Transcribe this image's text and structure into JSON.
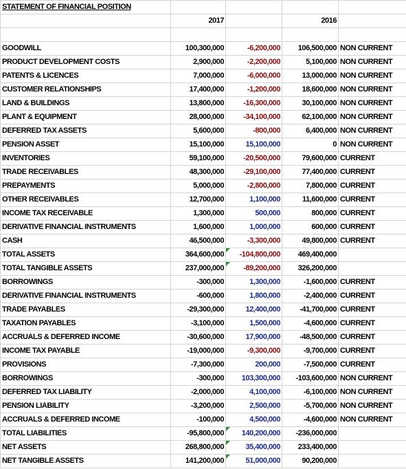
{
  "header": {
    "title": "STATEMENT OF FINANCIAL POSITION",
    "columns": [
      "2017",
      "2016"
    ]
  },
  "table": {
    "rows": [
      [
        "GOODWILL",
        "100,300,000",
        "-6,200,000",
        "106,500,000",
        "NON CURRENT"
      ],
      [
        "PRODUCT DEVELOPMENT COSTS",
        "2,900,000",
        "-2,200,000",
        "5,100,000",
        "NON CURRENT"
      ],
      [
        "PATENTS & LICENCES",
        "7,000,000",
        "-6,000,000",
        "13,000,000",
        "NON CURRENT"
      ],
      [
        "CUSTOMER RELATIONSHIPS",
        "17,400,000",
        "-1,200,000",
        "18,600,000",
        "NON CURRENT"
      ],
      [
        "LAND & BUILDINGS",
        "13,800,000",
        "-16,300,000",
        "30,100,000",
        "NON CURRENT"
      ],
      [
        "PLANT & EQUIPMENT",
        "28,000,000",
        "-34,100,000",
        "62,100,000",
        "NON CURRENT"
      ],
      [
        "DEFERRED TAX ASSETS",
        "5,600,000",
        "-800,000",
        "6,400,000",
        "NON CURRENT"
      ],
      [
        "PENSION ASSET",
        "15,100,000",
        "15,100,000",
        "0",
        "NON CURRENT"
      ],
      [
        "INVENTORIES",
        "59,100,000",
        "-20,500,000",
        "79,600,000",
        "CURRENT"
      ],
      [
        "TRADE RECEIVABLES",
        "48,300,000",
        "-29,100,000",
        "77,400,000",
        "CURRENT"
      ],
      [
        "PREPAYMENTS",
        "5,000,000",
        "-2,800,000",
        "7,800,000",
        "CURRENT"
      ],
      [
        "OTHER RECEIVABLES",
        "12,700,000",
        "1,100,000",
        "11,600,000",
        "CURRENT"
      ],
      [
        "INCOME TAX RECEIVABLE",
        "1,300,000",
        "500,000",
        "800,000",
        "CURRENT"
      ],
      [
        "DERIVATIVE FINANCIAL INSTRUMENTS",
        "1,600,000",
        "1,000,000",
        "600,000",
        "CURRENT"
      ],
      [
        "CASH",
        "46,500,000",
        "-3,300,000",
        "49,800,000",
        "CURRENT"
      ],
      [
        "TOTAL ASSETS",
        "364,600,000",
        "-104,800,000",
        "469,400,000",
        null
      ],
      [
        "TOTAL TANGIBLE ASSETS",
        "237,000,000",
        "-89,200,000",
        "326,200,000",
        null
      ],
      [
        "BORROWINGS",
        "-300,000",
        "1,300,000",
        "-1,600,000",
        "CURRENT"
      ],
      [
        "DERIVATIVE FINANCIAL INSTRUMENTS",
        "-600,000",
        "1,800,000",
        "-2,400,000",
        "CURRENT"
      ],
      [
        "TRADE PAYABLES",
        "-29,300,000",
        "12,400,000",
        "-41,700,000",
        "CURRENT"
      ],
      [
        "TAXATION PAYABLES",
        "-3,100,000",
        "1,500,000",
        "-4,600,000",
        "CURRENT"
      ],
      [
        "ACCRUALS & DEFERRED INCOME",
        "-30,600,000",
        "17,900,000",
        "-48,500,000",
        "CURRENT"
      ],
      [
        "INCOME TAX PAYABLE",
        "-19,000,000",
        "-9,300,000",
        "-9,700,000",
        "CURRENT"
      ],
      [
        "PROVISIONS",
        "-7,300,000",
        "200,000",
        "-7,500,000",
        "CURRENT"
      ],
      [
        "BORROWINGS",
        "-300,000",
        "103,300,000",
        "-103,600,000",
        "NON CURRENT"
      ],
      [
        "DEFERRED TAX LIABILITY",
        "-2,000,000",
        "4,100,000",
        "-6,100,000",
        "NON CURRENT"
      ],
      [
        "PENSION LIABILITY",
        "-3,200,000",
        "2,500,000",
        "-5,700,000",
        "NON CURRENT"
      ],
      [
        "ACCRUALS & DEFERRED INCOME",
        "-100,000",
        "4,500,000",
        "-4,600,000",
        "NON CURRENT"
      ],
      [
        "TOTAL LIABILITIES",
        "-95,800,000",
        "140,200,000",
        "-236,000,000",
        null
      ],
      [
        "NET ASSETS",
        "268,800,000",
        "35,400,000",
        "233,400,000",
        null
      ],
      [
        "NET TANGIBLE ASSETS",
        "141,200,000",
        "51,000,000",
        "90,200,000",
        null
      ]
    ]
  }
}
